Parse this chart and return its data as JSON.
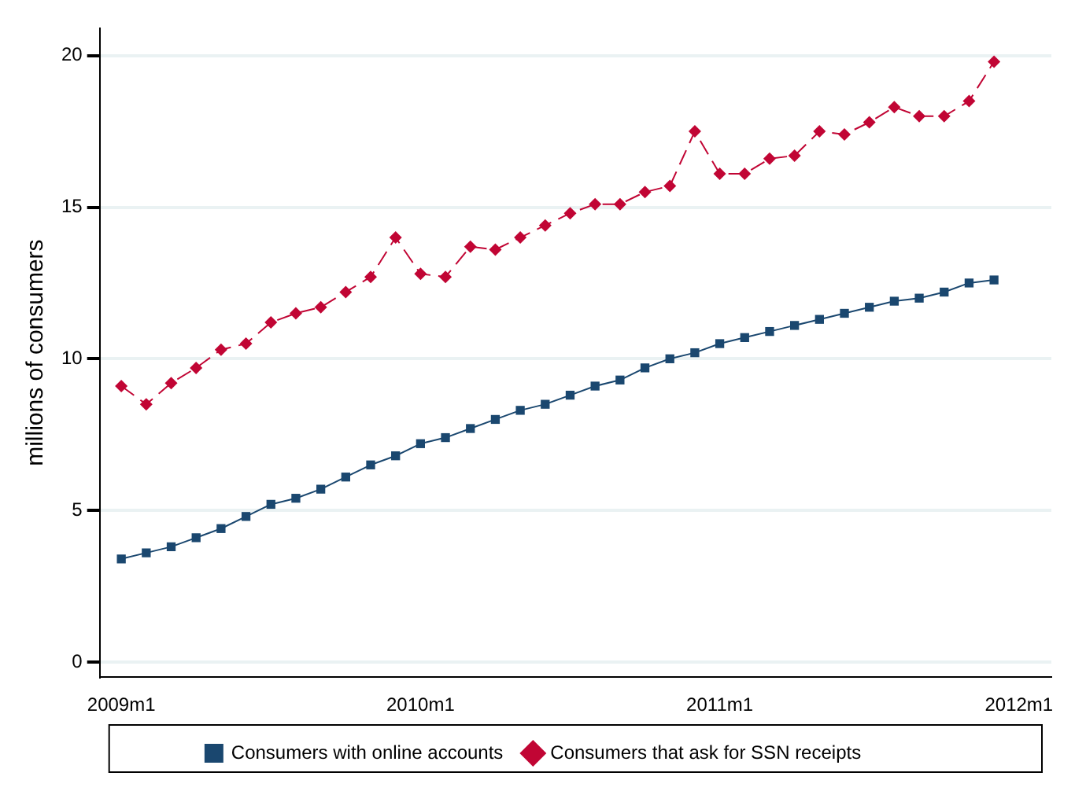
{
  "chart_data": {
    "type": "line",
    "ylabel": "millions of consumers",
    "x": [
      "2009-01",
      "2009-02",
      "2009-03",
      "2009-04",
      "2009-05",
      "2009-06",
      "2009-07",
      "2009-08",
      "2009-09",
      "2009-10",
      "2009-11",
      "2009-12",
      "2010-01",
      "2010-02",
      "2010-03",
      "2010-04",
      "2010-05",
      "2010-06",
      "2010-07",
      "2010-08",
      "2010-09",
      "2010-10",
      "2010-11",
      "2010-12",
      "2011-01",
      "2011-02",
      "2011-03",
      "2011-04",
      "2011-05",
      "2011-06",
      "2011-07",
      "2011-08",
      "2011-09",
      "2011-10",
      "2011-11",
      "2011-12"
    ],
    "series": [
      {
        "name": "Consumers with online accounts",
        "color": "#1a476f",
        "marker": "square",
        "line_style": "solid",
        "values": [
          3.4,
          3.6,
          3.8,
          4.1,
          4.4,
          4.8,
          5.2,
          5.4,
          5.7,
          6.1,
          6.5,
          6.8,
          7.2,
          7.4,
          7.7,
          8.0,
          8.3,
          8.5,
          8.8,
          9.1,
          9.3,
          9.7,
          10.0,
          10.2,
          10.5,
          10.7,
          10.9,
          11.1,
          11.3,
          11.5,
          11.7,
          11.9,
          12.0,
          12.2,
          12.5,
          12.6
        ]
      },
      {
        "name": "Consumers that ask for SSN receipts",
        "color": "#c10534",
        "marker": "diamond",
        "line_style": "dashed",
        "values": [
          9.1,
          8.5,
          9.2,
          9.7,
          10.3,
          10.5,
          11.2,
          11.5,
          11.7,
          12.2,
          12.7,
          14.0,
          12.8,
          12.7,
          13.7,
          13.6,
          14.0,
          14.4,
          14.8,
          15.1,
          15.1,
          15.5,
          15.7,
          17.5,
          16.1,
          16.1,
          16.6,
          16.7,
          17.5,
          17.4,
          17.8,
          18.3,
          18.0,
          18.0,
          18.5,
          19.8
        ]
      }
    ],
    "xlim": [
      "2008-12-05",
      "2012-02-10"
    ],
    "xticks": [
      {
        "value": "2009-01",
        "label": "2009m1"
      },
      {
        "value": "2010-01",
        "label": "2010m1"
      },
      {
        "value": "2011-01",
        "label": "2011m1"
      },
      {
        "value": "2012-01",
        "label": "2012m1"
      }
    ],
    "ylim": [
      -0.5,
      20.9
    ],
    "yticks": [
      0,
      5,
      10,
      15,
      20
    ],
    "grid": "y",
    "legend": "bottom"
  }
}
